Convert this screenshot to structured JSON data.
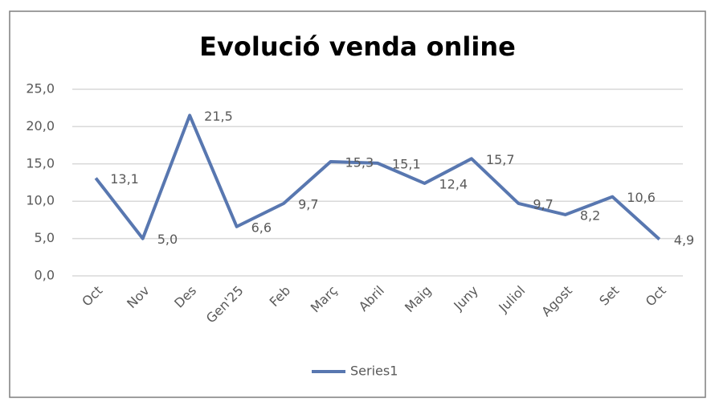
{
  "chart_data": {
    "type": "line",
    "title": "Evolució venda online",
    "categories": [
      "Oct",
      "Nov",
      "Des",
      "Gen'25",
      "Feb",
      "Març",
      "Abril",
      "Maig",
      "Juny",
      "Juliol",
      "Agost",
      "Set",
      "Oct"
    ],
    "series": [
      {
        "name": "Series1",
        "color": "#5877b0",
        "values": [
          13.1,
          5.0,
          21.5,
          6.6,
          9.7,
          15.3,
          15.1,
          12.4,
          15.7,
          9.7,
          8.2,
          10.6,
          4.9
        ],
        "value_labels": [
          "13,1",
          "5,0",
          "21,5",
          "6,6",
          "9,7",
          "15,3",
          "15,1",
          "12,4",
          "15,7",
          "9,7",
          "8,2",
          "10,6",
          "4,9"
        ]
      }
    ],
    "ylim": [
      0,
      25
    ],
    "yticks": [
      {
        "value": 0,
        "label": "0,0"
      },
      {
        "value": 5,
        "label": "5,0"
      },
      {
        "value": 10,
        "label": "10,0"
      },
      {
        "value": 15,
        "label": "15,0"
      },
      {
        "value": 20,
        "label": "20,0"
      },
      {
        "value": 25,
        "label": "25,0"
      }
    ],
    "grid": true,
    "legend": "bottom"
  }
}
